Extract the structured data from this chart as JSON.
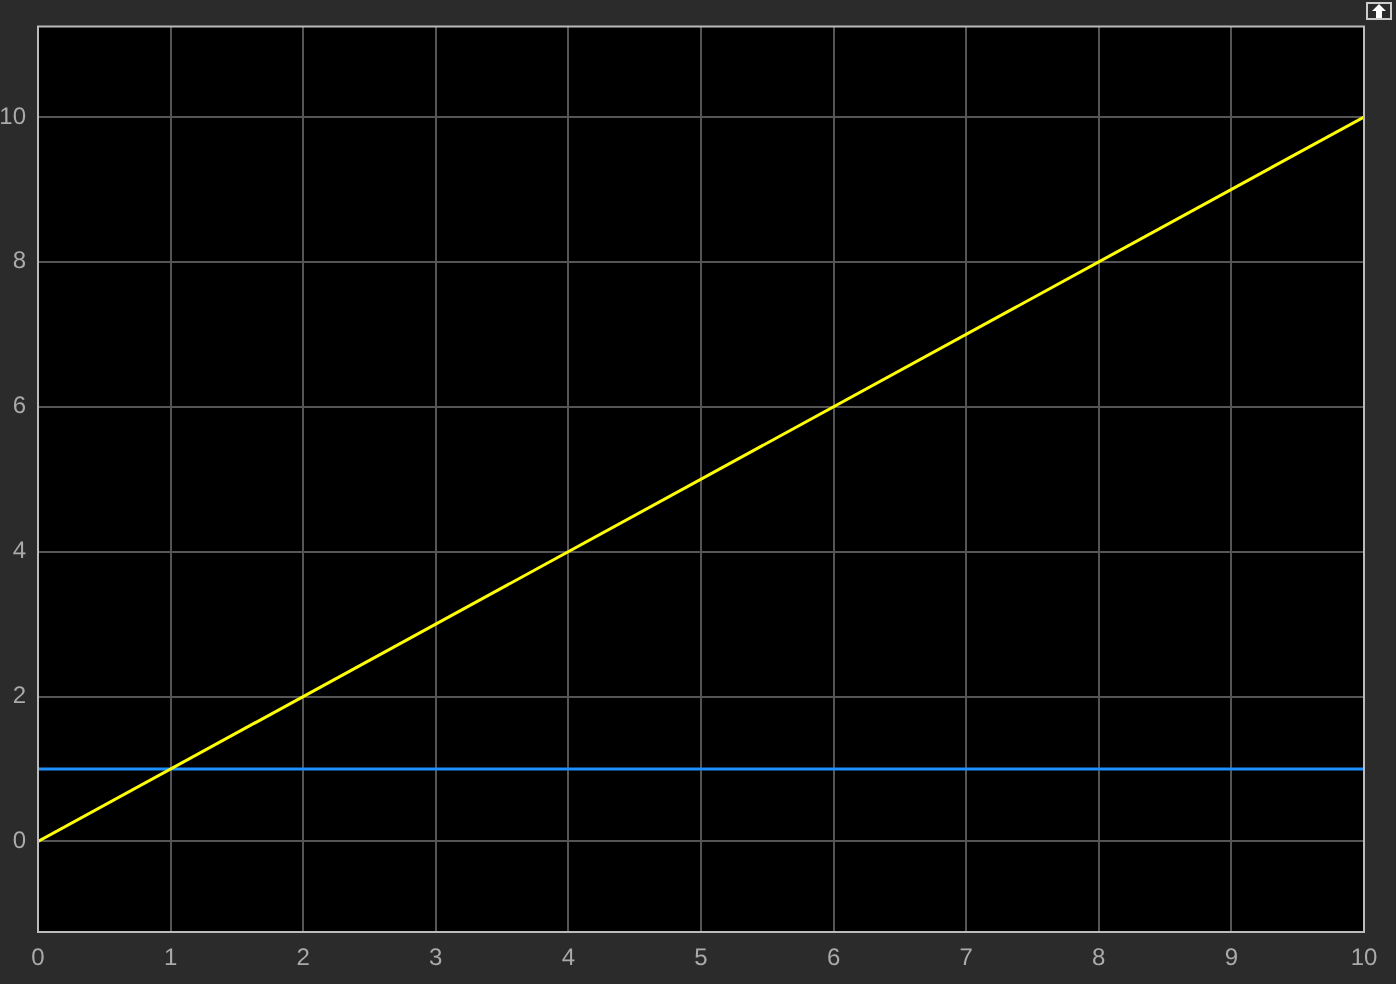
{
  "chart_data": {
    "type": "line",
    "x": [
      0,
      10
    ],
    "series": [
      {
        "color": "#ffff00",
        "values": [
          0,
          10
        ]
      },
      {
        "color": "#1e90ff",
        "values": [
          1,
          1
        ]
      }
    ],
    "xlim": [
      0,
      10
    ],
    "xticks": [
      0,
      1,
      2,
      3,
      4,
      5,
      6,
      7,
      8,
      9,
      10
    ],
    "ylim": [
      -1.25,
      11.25
    ],
    "yticks": [
      0,
      2,
      4,
      6,
      8,
      10
    ],
    "grid": true,
    "legend": false,
    "marker": "none",
    "line_style": "solid"
  }
}
